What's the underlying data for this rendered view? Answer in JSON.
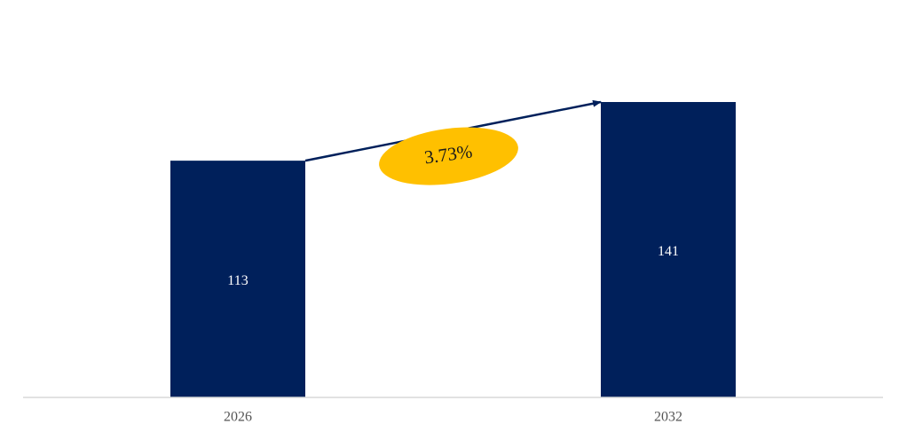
{
  "chart_data": {
    "type": "bar",
    "categories": [
      "2026",
      "2032"
    ],
    "values": [
      113,
      141
    ],
    "data_labels": [
      "113",
      "141"
    ],
    "ylim": [
      0,
      141
    ],
    "grid": false,
    "legend": "none",
    "annotation": {
      "text": "3.73%",
      "shape": "ellipse",
      "arrow": "from first bar top to second bar top"
    }
  },
  "colors": {
    "bar": "#00205b",
    "arrow": "#00205b",
    "annotation_fill": "#ffc000",
    "axis_line": "#d9d9d9",
    "tick_text": "#555555",
    "bar_label_text": "#ffffff"
  }
}
